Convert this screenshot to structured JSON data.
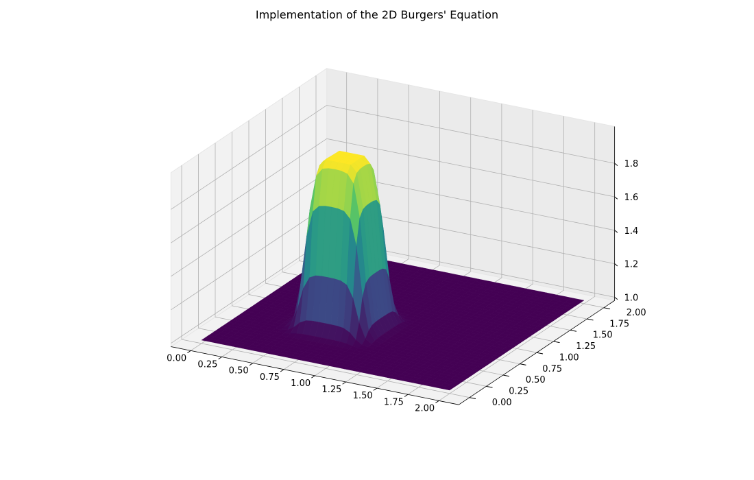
{
  "chart_data": {
    "type": "surface3d",
    "title": "Implementation of the 2D Burgers' Equation",
    "xlabel": "",
    "ylabel": "",
    "zlabel": "",
    "colormap": "viridis",
    "xlim": [
      0.0,
      2.0
    ],
    "ylim": [
      0.0,
      2.0
    ],
    "zlim": [
      1.0,
      2.0
    ],
    "x_ticks": [
      "0.00",
      "0.25",
      "0.50",
      "0.75",
      "1.00",
      "1.25",
      "1.50",
      "1.75",
      "2.00"
    ],
    "y_ticks": [
      "0.00",
      "0.25",
      "0.50",
      "0.75",
      "1.00",
      "1.25",
      "1.50",
      "1.75",
      "2.00"
    ],
    "z_ticks": [
      "1.0",
      "1.2",
      "1.4",
      "1.6",
      "1.8"
    ],
    "surface": {
      "base_value": 1.0,
      "peak_value": 2.0,
      "hat_region": {
        "x": [
          0.5,
          1.0
        ],
        "y": [
          0.5,
          1.0
        ]
      },
      "grid_points": 41
    },
    "colors": {
      "low": "#440154",
      "mid": "#21918c",
      "high": "#fde725",
      "pane": "#f2f2f2"
    }
  }
}
